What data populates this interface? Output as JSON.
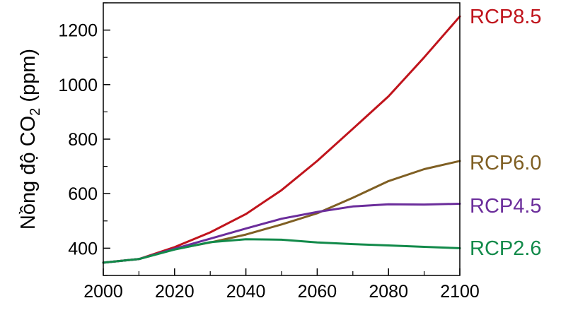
{
  "chart_data": {
    "type": "line",
    "xlabel": "",
    "ylabel": {
      "main": "Nồng độ CO",
      "subscript": "2",
      "unit": " (ppm)"
    },
    "xlim": [
      2000,
      2100
    ],
    "ylim": [
      300,
      1300
    ],
    "xticks": [
      2000,
      2020,
      2040,
      2060,
      2080,
      2100
    ],
    "yticks": [
      400,
      600,
      800,
      1000,
      1200
    ],
    "xticks_minor": [
      2010,
      2030,
      2050,
      2070,
      2090
    ],
    "yticks_minor": [
      300,
      500,
      700,
      900,
      1100,
      1300
    ],
    "grid": false,
    "legend": "inline at right end of each line",
    "series": [
      {
        "name": "RCP8.5",
        "color": "#c0141c",
        "x": [
          2000,
          2010,
          2020,
          2030,
          2040,
          2050,
          2060,
          2070,
          2080,
          2090,
          2100
        ],
        "y": [
          347,
          360,
          404,
          458,
          525,
          613,
          720,
          838,
          957,
          1100,
          1250
        ]
      },
      {
        "name": "RCP6.0",
        "color": "#7f5f23",
        "x": [
          2000,
          2010,
          2020,
          2030,
          2040,
          2050,
          2060,
          2070,
          2080,
          2090,
          2100
        ],
        "y": [
          347,
          360,
          396,
          421,
          450,
          487,
          528,
          585,
          646,
          690,
          720
        ]
      },
      {
        "name": "RCP4.5",
        "color": "#6b2d9b",
        "x": [
          2000,
          2010,
          2020,
          2030,
          2040,
          2050,
          2060,
          2070,
          2080,
          2090,
          2100
        ],
        "y": [
          347,
          360,
          398,
          435,
          472,
          508,
          533,
          553,
          561,
          560,
          563
        ]
      },
      {
        "name": "RCP2.6",
        "color": "#128a4a",
        "x": [
          2000,
          2010,
          2020,
          2030,
          2040,
          2050,
          2060,
          2070,
          2080,
          2090,
          2100
        ],
        "y": [
          347,
          360,
          395,
          422,
          433,
          431,
          421,
          415,
          410,
          405,
          400
        ]
      }
    ]
  }
}
